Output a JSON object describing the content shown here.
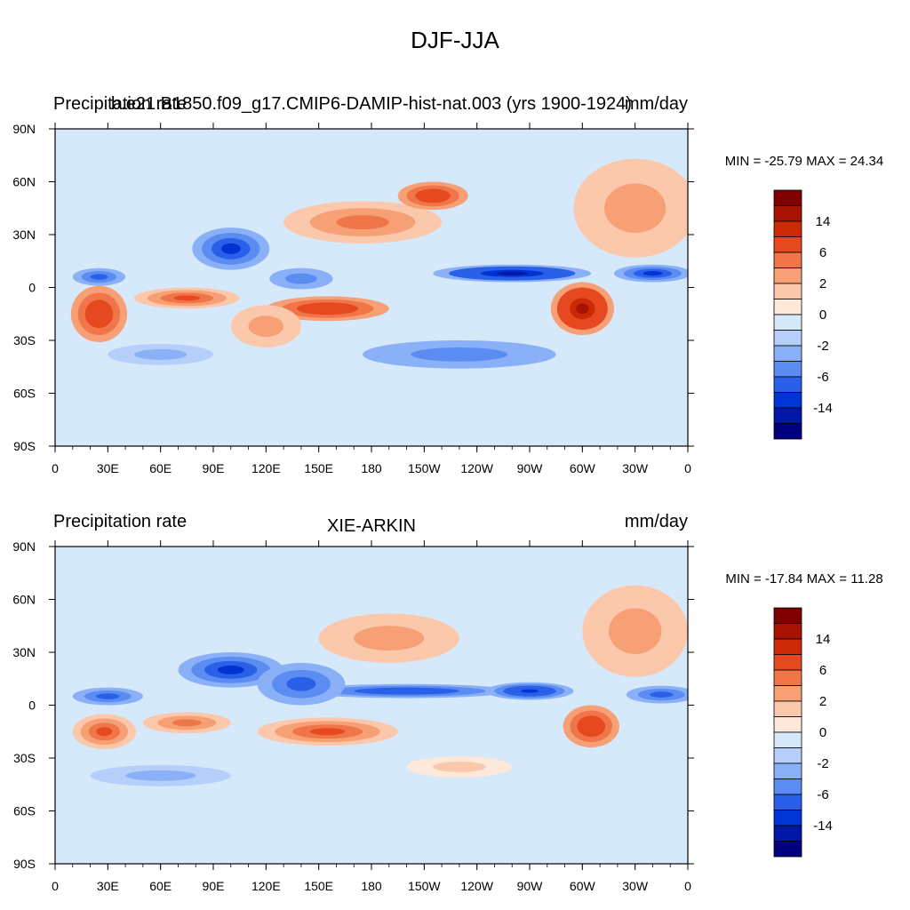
{
  "page_title": "DJF-JJA",
  "colors": {
    "ocean_background": "#d6e9fb",
    "levels": [
      "#00007f",
      "#0018a8",
      "#0033d3",
      "#2a5fe8",
      "#5a8cf2",
      "#8ab1f7",
      "#b5cffa",
      "#d6e9fb",
      "#fde8da",
      "#fcc8ab",
      "#f79f75",
      "#f0764a",
      "#e6491f",
      "#cc2a07",
      "#a81303",
      "#7f0000"
    ]
  },
  "colorbar": {
    "labels": [
      "14",
      "6",
      "2",
      "0",
      "-2",
      "-6",
      "-14"
    ]
  },
  "chart_data": [
    {
      "type": "heatmap",
      "title_left": "Precipitation rate",
      "title_center": "b.e21.B1850.f09_g17.CMIP6-DAMIP-hist-nat.003 (yrs 1900-1924)",
      "title_right": "mm/day",
      "stats": "MIN = -25.79 MAX =  24.34",
      "min": -25.79,
      "max": 24.34,
      "x_ticks": [
        "0",
        "30E",
        "60E",
        "90E",
        "120E",
        "150E",
        "180",
        "150W",
        "120W",
        "90W",
        "60W",
        "30W",
        "0"
      ],
      "y_ticks": [
        "90N",
        "60N",
        "30N",
        "0",
        "30S",
        "60S",
        "90S"
      ],
      "xlim": [
        0,
        360
      ],
      "ylim": [
        -90,
        90
      ],
      "fields": [
        {
          "lon": 175,
          "lat": 37,
          "value": 6,
          "rx": 45,
          "ry": 12
        },
        {
          "lon": 215,
          "lat": 52,
          "value": 9,
          "rx": 20,
          "ry": 8
        },
        {
          "lon": 330,
          "lat": 45,
          "value": 4,
          "rx": 35,
          "ry": 28
        },
        {
          "lon": 25,
          "lat": -15,
          "value": 10,
          "rx": 16,
          "ry": 16
        },
        {
          "lon": 75,
          "lat": -6,
          "value": 8,
          "rx": 30,
          "ry": 6
        },
        {
          "lon": 155,
          "lat": -12,
          "value": 9,
          "rx": 35,
          "ry": 7
        },
        {
          "lon": 300,
          "lat": -12,
          "value": 16,
          "rx": 18,
          "ry": 15
        },
        {
          "lon": 120,
          "lat": -22,
          "value": 3,
          "rx": 20,
          "ry": 12
        },
        {
          "lon": 100,
          "lat": 22,
          "value": -10,
          "rx": 22,
          "ry": 12
        },
        {
          "lon": 260,
          "lat": 8,
          "value": -16,
          "rx": 45,
          "ry": 5
        },
        {
          "lon": 340,
          "lat": 8,
          "value": -10,
          "rx": 22,
          "ry": 5
        },
        {
          "lon": 25,
          "lat": 6,
          "value": -6,
          "rx": 15,
          "ry": 5
        },
        {
          "lon": 140,
          "lat": 5,
          "value": -4,
          "rx": 18,
          "ry": 6
        },
        {
          "lon": 230,
          "lat": -38,
          "value": -4,
          "rx": 55,
          "ry": 8
        },
        {
          "lon": 60,
          "lat": -38,
          "value": -3,
          "rx": 30,
          "ry": 6
        }
      ]
    },
    {
      "type": "heatmap",
      "title_left": "Precipitation rate",
      "title_center": "XIE-ARKIN",
      "title_right": "mm/day",
      "stats": "MIN = -17.84 MAX =  11.28",
      "min": -17.84,
      "max": 11.28,
      "x_ticks": [
        "0",
        "30E",
        "60E",
        "90E",
        "120E",
        "150E",
        "180",
        "150W",
        "120W",
        "90W",
        "60W",
        "30W",
        "0"
      ],
      "y_ticks": [
        "90N",
        "60N",
        "30N",
        "0",
        "30S",
        "60S",
        "90S"
      ],
      "xlim": [
        0,
        360
      ],
      "ylim": [
        -90,
        90
      ],
      "fields": [
        {
          "lon": 190,
          "lat": 38,
          "value": 4,
          "rx": 40,
          "ry": 14
        },
        {
          "lon": 330,
          "lat": 42,
          "value": 4,
          "rx": 30,
          "ry": 26
        },
        {
          "lon": 28,
          "lat": -15,
          "value": 8,
          "rx": 18,
          "ry": 10
        },
        {
          "lon": 75,
          "lat": -10,
          "value": 5,
          "rx": 25,
          "ry": 6
        },
        {
          "lon": 155,
          "lat": -15,
          "value": 8,
          "rx": 40,
          "ry": 8
        },
        {
          "lon": 305,
          "lat": -12,
          "value": 10,
          "rx": 16,
          "ry": 12
        },
        {
          "lon": 100,
          "lat": 20,
          "value": -10,
          "rx": 30,
          "ry": 10
        },
        {
          "lon": 200,
          "lat": 8,
          "value": -8,
          "rx": 60,
          "ry": 4
        },
        {
          "lon": 270,
          "lat": 8,
          "value": -12,
          "rx": 25,
          "ry": 5
        },
        {
          "lon": 345,
          "lat": 6,
          "value": -6,
          "rx": 20,
          "ry": 5
        },
        {
          "lon": 30,
          "lat": 5,
          "value": -6,
          "rx": 20,
          "ry": 5
        },
        {
          "lon": 140,
          "lat": 12,
          "value": -6,
          "rx": 25,
          "ry": 12
        },
        {
          "lon": 230,
          "lat": -35,
          "value": 2,
          "rx": 30,
          "ry": 6
        },
        {
          "lon": 60,
          "lat": -40,
          "value": -2,
          "rx": 40,
          "ry": 6
        }
      ]
    }
  ]
}
